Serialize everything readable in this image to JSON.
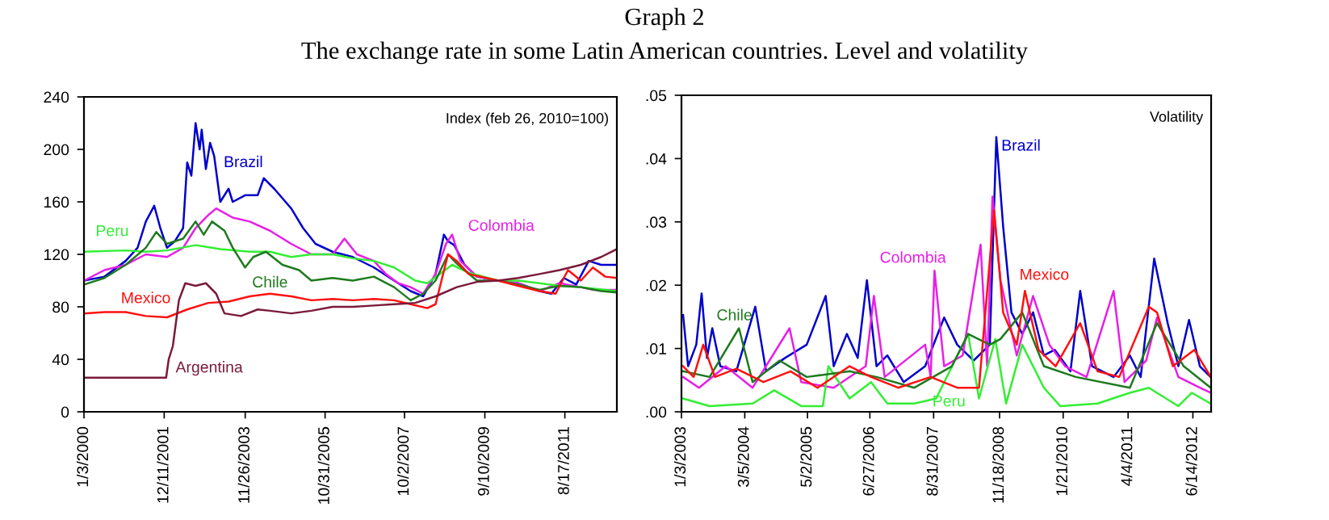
{
  "chart_data": [
    {
      "type": "line",
      "title": "Graph 2",
      "subtitle": "The exchange rate in some Latin American countries. Level and volatility",
      "xlim": [
        "2000-01-03",
        "2012-11-18"
      ],
      "ylim": [
        0,
        240
      ],
      "yticks": [
        0,
        40,
        80,
        120,
        160,
        200,
        240
      ],
      "xticks": [
        {
          "value": "2000-01-03",
          "label": "1/3/2000"
        },
        {
          "value": "2001-12-11",
          "label": "12/11/2001"
        },
        {
          "value": "2003-11-26",
          "label": "11/26/2003"
        },
        {
          "value": "2005-10-31",
          "label": "10/31/2005"
        },
        {
          "value": "2007-10-02",
          "label": "10/2/2007"
        },
        {
          "value": "2009-09-10",
          "label": "9/10/2009"
        },
        {
          "value": "2011-08-17",
          "label": "8/17/2011"
        }
      ],
      "annotations": [
        "Index (feb 26, 2010=100)"
      ],
      "series": [
        {
          "name": "Brazil",
          "color": "#0000cc",
          "x": [
            "2000-01-05",
            "2000-07-02",
            "2001-01-05",
            "2001-04-20",
            "2001-07-02",
            "2001-09-14",
            "2001-11-07",
            "2002-01-05",
            "2002-03-15",
            "2002-05-27",
            "2002-07-02",
            "2002-08-08",
            "2002-09-14",
            "2002-10-20",
            "2002-11-07",
            "2002-12-14",
            "2003-01-20",
            "2003-02-25",
            "2003-04-20",
            "2003-07-02",
            "2003-08-08",
            "2003-11-25",
            "2004-03-15",
            "2004-05-08",
            "2004-08-08",
            "2005-01-05",
            "2005-04-20",
            "2005-08-08",
            "2006-01-05",
            "2006-07-02",
            "2007-01-05",
            "2007-07-02",
            "2007-11-25",
            "2008-03-15",
            "2008-07-02",
            "2008-09-14",
            "2008-10-20",
            "2008-12-14",
            "2009-03-15",
            "2009-07-02",
            "2010-01-05",
            "2010-07-02",
            "2011-01-05",
            "2011-04-20",
            "2011-08-08",
            "2011-11-25",
            "2012-03-15",
            "2012-07-02",
            "2012-11-18"
          ],
          "values": [
            100,
            103,
            115,
            125,
            145,
            157,
            140,
            125,
            130,
            140,
            190,
            180,
            220,
            200,
            215,
            185,
            205,
            195,
            160,
            170,
            160,
            165,
            165,
            178,
            170,
            155,
            140,
            128,
            122,
            118,
            110,
            100,
            92,
            88,
            105,
            135,
            130,
            127,
            112,
            103,
            100,
            98,
            92,
            90,
            102,
            97,
            115,
            112,
            112
          ]
        },
        {
          "name": "Colombia",
          "color": "#e81ee8",
          "x": [
            "2000-01-05",
            "2000-07-02",
            "2001-01-05",
            "2001-07-02",
            "2002-01-05",
            "2002-05-27",
            "2002-09-14",
            "2003-01-05",
            "2003-03-15",
            "2003-08-08",
            "2004-01-05",
            "2004-07-02",
            "2005-01-05",
            "2005-07-02",
            "2006-01-05",
            "2006-04-20",
            "2006-08-08",
            "2007-01-05",
            "2007-04-20",
            "2007-08-08",
            "2007-11-25",
            "2008-03-15",
            "2008-07-02",
            "2008-10-02",
            "2008-11-25",
            "2009-02-06",
            "2009-07-02",
            "2010-01-05",
            "2010-07-02",
            "2011-01-05",
            "2011-07-02",
            "2012-01-05",
            "2012-04-20",
            "2012-11-18"
          ],
          "values": [
            100,
            108,
            112,
            120,
            118,
            125,
            140,
            150,
            155,
            148,
            145,
            138,
            128,
            120,
            120,
            132,
            120,
            115,
            105,
            98,
            95,
            90,
            105,
            128,
            135,
            115,
            103,
            100,
            98,
            92,
            98,
            95,
            93,
            93
          ]
        },
        {
          "name": "Peru",
          "color": "#33ee33",
          "x": [
            "2000-01-05",
            "2001-01-05",
            "2001-07-02",
            "2002-01-05",
            "2002-09-14",
            "2003-04-20",
            "2004-01-05",
            "2004-07-02",
            "2005-01-05",
            "2005-07-02",
            "2006-01-05",
            "2006-07-02",
            "2007-01-05",
            "2007-07-02",
            "2008-01-05",
            "2008-04-20",
            "2008-08-08",
            "2008-11-25",
            "2009-04-20",
            "2010-01-05",
            "2010-07-02",
            "2011-01-05",
            "2011-07-02",
            "2012-01-05",
            "2012-11-18"
          ],
          "values": [
            122,
            123,
            122,
            123,
            127,
            124,
            122,
            122,
            118,
            120,
            120,
            117,
            115,
            110,
            100,
            98,
            105,
            112,
            106,
            100,
            100,
            98,
            96,
            95,
            92
          ]
        },
        {
          "name": "Chile",
          "color": "#1e7a1e",
          "x": [
            "2000-01-05",
            "2000-07-02",
            "2001-01-05",
            "2001-07-02",
            "2001-10-02",
            "2002-01-05",
            "2002-05-27",
            "2002-09-14",
            "2002-11-25",
            "2003-02-06",
            "2003-05-27",
            "2003-08-08",
            "2003-11-25",
            "2004-02-06",
            "2004-05-27",
            "2004-10-20",
            "2005-03-15",
            "2005-07-02",
            "2006-01-05",
            "2006-07-02",
            "2007-01-05",
            "2007-07-02",
            "2007-11-25",
            "2008-03-15",
            "2008-07-02",
            "2008-10-20",
            "2009-01-05",
            "2009-07-02",
            "2010-01-05",
            "2010-07-02",
            "2011-01-05",
            "2011-07-02",
            "2012-01-05",
            "2012-07-02",
            "2012-11-18"
          ],
          "values": [
            97,
            102,
            112,
            125,
            137,
            128,
            132,
            145,
            135,
            145,
            138,
            125,
            110,
            118,
            122,
            112,
            108,
            100,
            102,
            100,
            103,
            95,
            85,
            90,
            100,
            120,
            113,
            100,
            100,
            97,
            93,
            96,
            95,
            92,
            91
          ]
        },
        {
          "name": "Mexico",
          "color": "#ff1010",
          "x": [
            "2000-01-05",
            "2000-07-02",
            "2001-01-05",
            "2001-07-02",
            "2002-01-05",
            "2002-07-02",
            "2003-01-05",
            "2003-07-02",
            "2004-01-05",
            "2004-07-02",
            "2005-01-05",
            "2005-07-02",
            "2006-01-05",
            "2006-07-02",
            "2007-01-05",
            "2007-07-02",
            "2007-11-25",
            "2008-04-20",
            "2008-07-02",
            "2008-10-20",
            "2009-01-05",
            "2009-04-20",
            "2010-01-05",
            "2010-07-02",
            "2011-01-05",
            "2011-05-27",
            "2011-09-14",
            "2012-01-05",
            "2012-04-20",
            "2012-08-08",
            "2012-11-18"
          ],
          "values": [
            75,
            76,
            76,
            73,
            72,
            78,
            83,
            84,
            88,
            90,
            88,
            85,
            86,
            85,
            86,
            85,
            82,
            79,
            82,
            120,
            115,
            105,
            100,
            96,
            92,
            90,
            108,
            100,
            110,
            103,
            102
          ]
        },
        {
          "name": "Argentina",
          "color": "#7a1a3a",
          "x": [
            "2000-01-05",
            "2001-12-28",
            "2002-01-20",
            "2002-02-25",
            "2002-04-20",
            "2002-06-15",
            "2002-09-14",
            "2002-12-14",
            "2003-03-15",
            "2003-05-27",
            "2003-10-20",
            "2004-03-15",
            "2004-07-02",
            "2005-01-05",
            "2005-07-02",
            "2006-01-05",
            "2006-07-02",
            "2007-01-05",
            "2007-07-02",
            "2008-01-05",
            "2008-07-02",
            "2009-01-05",
            "2009-07-02",
            "2010-01-05",
            "2010-07-02",
            "2011-01-05",
            "2011-07-02",
            "2012-01-05",
            "2012-07-02",
            "2012-11-18"
          ],
          "values": [
            26,
            26,
            40,
            50,
            85,
            98,
            96,
            98,
            90,
            75,
            73,
            78,
            77,
            75,
            77,
            80,
            80,
            81,
            82,
            83,
            88,
            95,
            99,
            100,
            102,
            105,
            108,
            112,
            118,
            124
          ]
        }
      ]
    },
    {
      "type": "line",
      "xlim": [
        "2003-01-03",
        "2012-10-15"
      ],
      "ylim": [
        0,
        0.05
      ],
      "yticks": [
        {
          "value": 0,
          "label": ".00"
        },
        {
          "value": 0.01,
          "label": ".01"
        },
        {
          "value": 0.02,
          "label": ".02"
        },
        {
          "value": 0.03,
          "label": ".03"
        },
        {
          "value": 0.04,
          "label": ".04"
        },
        {
          "value": 0.05,
          "label": ".05"
        }
      ],
      "xticks": [
        {
          "value": "2003-01-03",
          "label": "1/3/2003"
        },
        {
          "value": "2004-03-05",
          "label": "3/5/2004"
        },
        {
          "value": "2005-05-02",
          "label": "5/2/2005"
        },
        {
          "value": "2006-06-27",
          "label": "6/27/2006"
        },
        {
          "value": "2007-08-31",
          "label": "8/31/2007"
        },
        {
          "value": "2008-11-18",
          "label": "11/18/2008"
        },
        {
          "value": "2010-01-21",
          "label": "1/21/2010"
        },
        {
          "value": "2011-04-04",
          "label": "4/4/2011"
        },
        {
          "value": "2012-06-14",
          "label": "6/14/2012"
        }
      ],
      "annotations": [
        "Volatility"
      ],
      "series": [
        {
          "name": "Brazil",
          "color": "#0000cc",
          "x": [
            "2003-01-14",
            "2003-02-17",
            "2003-04-13",
            "2003-05-19",
            "2003-06-24",
            "2003-07-30",
            "2003-09-22",
            "2004-01-08",
            "2004-05-15",
            "2004-07-27",
            "2004-12-01",
            "2005-04-27",
            "2005-09-02",
            "2005-10-26",
            "2006-01-23",
            "2006-04-06",
            "2006-06-07",
            "2006-08-11",
            "2006-10-23",
            "2007-02-10",
            "2007-07-05",
            "2007-11-10",
            "2008-02-06",
            "2008-05-27",
            "2008-09-13",
            "2008-10-27",
            "2008-12-12",
            "2009-02-06",
            "2009-04-20",
            "2009-07-02",
            "2009-09-13",
            "2009-11-25",
            "2010-03-11",
            "2010-05-16",
            "2010-08-04",
            "2010-12-27",
            "2011-04-16",
            "2011-06-28",
            "2011-09-27",
            "2011-12-27",
            "2012-03-08",
            "2012-05-19",
            "2012-07-31",
            "2012-10-12"
          ],
          "values": [
            0.0153,
            0.0072,
            0.0106,
            0.0187,
            0.0085,
            0.0132,
            0.0072,
            0.0064,
            0.0166,
            0.0064,
            0.0085,
            0.0106,
            0.0183,
            0.0072,
            0.0123,
            0.0085,
            0.0208,
            0.0072,
            0.0089,
            0.0047,
            0.0072,
            0.0149,
            0.0106,
            0.0081,
            0.0106,
            0.0434,
            0.0293,
            0.0157,
            0.0123,
            0.0157,
            0.0089,
            0.0098,
            0.0064,
            0.0191,
            0.0072,
            0.0055,
            0.0089,
            0.0055,
            0.0242,
            0.014,
            0.0072,
            0.0145,
            0.0072,
            0.0055
          ]
        },
        {
          "name": "Colombia",
          "color": "#e81ee8",
          "x": [
            "2003-01-14",
            "2003-05-01",
            "2003-10-28",
            "2004-04-27",
            "2005-01-01",
            "2005-03-21",
            "2005-10-26",
            "2006-05-30",
            "2006-07-24",
            "2006-10-05",
            "2007-07-05",
            "2007-08-11",
            "2007-09-06",
            "2007-11-10",
            "2008-03-14",
            "2008-07-13",
            "2008-08-26",
            "2008-10-01",
            "2008-11-24",
            "2009-03-14",
            "2009-07-02",
            "2009-10-20",
            "2010-02-03",
            "2010-06-28",
            "2010-12-27",
            "2011-03-11",
            "2011-08-04",
            "2011-10-16",
            "2012-03-08",
            "2012-07-31",
            "2012-10-12"
          ],
          "values": [
            0.0055,
            0.0038,
            0.0072,
            0.0038,
            0.0132,
            0.0047,
            0.0038,
            0.0072,
            0.0183,
            0.0055,
            0.0106,
            0.0055,
            0.0223,
            0.0072,
            0.0089,
            0.0264,
            0.0072,
            0.034,
            0.0208,
            0.0089,
            0.0183,
            0.0106,
            0.0072,
            0.0055,
            0.0191,
            0.0047,
            0.0081,
            0.0149,
            0.0055,
            0.0038,
            0.003
          ]
        },
        {
          "name": "Peru",
          "color": "#33ee33",
          "x": [
            "2003-01-14",
            "2003-07-12",
            "2004-04-27",
            "2004-09-20",
            "2005-03-21",
            "2005-08-14",
            "2005-09-20",
            "2006-02-10",
            "2006-07-05",
            "2006-10-23",
            "2007-04-23",
            "2007-09-17",
            "2008-04-20",
            "2008-07-02",
            "2008-10-20",
            "2009-01-01",
            "2009-04-20",
            "2009-09-13",
            "2010-01-01",
            "2010-09-10",
            "2011-04-16",
            "2011-08-22",
            "2012-03-08",
            "2012-06-07",
            "2012-10-12"
          ],
          "values": [
            0.0021,
            0.0009,
            0.0013,
            0.0034,
            0.0009,
            0.0009,
            0.0072,
            0.0021,
            0.0047,
            0.0013,
            0.0013,
            0.0021,
            0.0123,
            0.0021,
            0.0115,
            0.0013,
            0.0106,
            0.0038,
            0.0009,
            0.0013,
            0.003,
            0.0038,
            0.0009,
            0.003,
            0.0013
          ]
        },
        {
          "name": "Chile",
          "color": "#1e7a1e",
          "x": [
            "2003-01-14",
            "2003-07-12",
            "2004-01-26",
            "2004-04-27",
            "2004-10-26",
            "2005-04-27",
            "2006-02-10",
            "2006-08-11",
            "2007-04-23",
            "2008-01-01",
            "2008-04-20",
            "2008-09-13",
            "2008-11-24",
            "2009-04-20",
            "2009-09-13",
            "2010-04-16",
            "2011-04-16",
            "2011-10-16",
            "2012-04-13",
            "2012-10-12"
          ],
          "values": [
            0.0064,
            0.0055,
            0.0132,
            0.0047,
            0.0081,
            0.0055,
            0.0064,
            0.0055,
            0.0038,
            0.0072,
            0.0123,
            0.0106,
            0.0115,
            0.0157,
            0.0072,
            0.0055,
            0.0038,
            0.014,
            0.0072,
            0.0038
          ]
        },
        {
          "name": "Mexico",
          "color": "#ff1010",
          "x": [
            "2003-01-14",
            "2003-03-26",
            "2003-05-30",
            "2003-08-17",
            "2004-01-08",
            "2004-07-09",
            "2005-01-08",
            "2005-07-09",
            "2006-02-10",
            "2006-07-05",
            "2007-01-04",
            "2007-08-11",
            "2008-02-06",
            "2008-07-02",
            "2008-10-12",
            "2008-12-12",
            "2009-03-14",
            "2009-05-08",
            "2009-08-08",
            "2009-12-01",
            "2010-05-16",
            "2010-09-10",
            "2011-02-03",
            "2011-08-22",
            "2011-10-16",
            "2012-01-31",
            "2012-06-24",
            "2012-10-12"
          ],
          "values": [
            0.0072,
            0.0055,
            0.0106,
            0.0055,
            0.0068,
            0.0047,
            0.0064,
            0.0038,
            0.0072,
            0.0055,
            0.0038,
            0.0055,
            0.0038,
            0.0038,
            0.0319,
            0.0157,
            0.0106,
            0.0191,
            0.0098,
            0.0072,
            0.014,
            0.0064,
            0.0055,
            0.0166,
            0.0157,
            0.0072,
            0.0098,
            0.0055
          ]
        }
      ]
    }
  ]
}
